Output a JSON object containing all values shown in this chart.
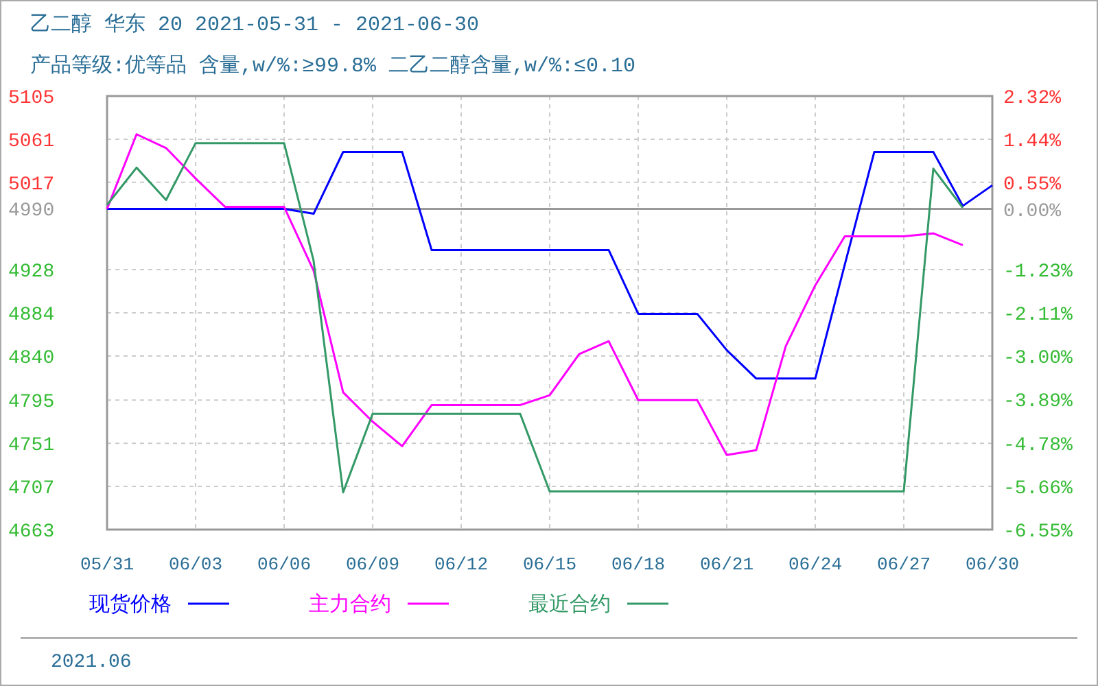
{
  "chart_data": {
    "type": "line",
    "title": "乙二醇 华东 20 2021-05-31 - 2021-06-30",
    "subtitle": "产品等级:优等品 含量,w/%:≥99.8% 二乙二醇含量,w/%:≤0.10",
    "x": [
      "2021-05-31",
      "2021-06-01",
      "2021-06-02",
      "2021-06-03",
      "2021-06-04",
      "2021-06-05",
      "2021-06-06",
      "2021-06-07",
      "2021-06-08",
      "2021-06-09",
      "2021-06-10",
      "2021-06-11",
      "2021-06-12",
      "2021-06-13",
      "2021-06-14",
      "2021-06-15",
      "2021-06-16",
      "2021-06-17",
      "2021-06-18",
      "2021-06-19",
      "2021-06-20",
      "2021-06-21",
      "2021-06-22",
      "2021-06-23",
      "2021-06-24",
      "2021-06-25",
      "2021-06-26",
      "2021-06-27",
      "2021-06-28",
      "2021-06-29",
      "2021-06-30"
    ],
    "series": [
      {
        "name": "现货价格",
        "color": "#0000ff",
        "values": [
          4990,
          4990,
          4990,
          4990,
          4990,
          4990,
          4990,
          4985,
          5048,
          5048,
          5048,
          4948,
          4948,
          4948,
          4948,
          4948,
          4948,
          4948,
          4883,
          4883,
          4883,
          4846,
          4817,
          4817,
          4817,
          4933,
          5048,
          5048,
          5048,
          4993,
          5014
        ]
      },
      {
        "name": "主力合约",
        "color": "#ff00ff",
        "values": [
          4990,
          5066,
          5052,
          5021,
          4992,
          4992,
          4992,
          4927,
          4803,
          4773,
          4748,
          4790,
          4790,
          4790,
          4790,
          4800,
          4842,
          4855,
          4795,
          4795,
          4795,
          4739,
          4744,
          4850,
          4912,
          4962,
          4962,
          4962,
          4965,
          4953,
          null
        ]
      },
      {
        "name": "最近合约",
        "color": "#339966",
        "values": [
          4994,
          5032,
          4999,
          5057,
          5057,
          5057,
          5057,
          4937,
          4701,
          4781,
          4781,
          4781,
          4781,
          4781,
          4781,
          4702,
          4702,
          4702,
          4702,
          4702,
          4702,
          4702,
          4702,
          4702,
          4702,
          4702,
          4702,
          4702,
          5031,
          4991,
          null
        ]
      }
    ],
    "xlim": [
      "2021-05-31",
      "2021-06-30"
    ],
    "xticks": [
      {
        "value": "2021-05-31",
        "label": "05/31"
      },
      {
        "value": "2021-06-03",
        "label": "06/03"
      },
      {
        "value": "2021-06-06",
        "label": "06/06"
      },
      {
        "value": "2021-06-09",
        "label": "06/09"
      },
      {
        "value": "2021-06-12",
        "label": "06/12"
      },
      {
        "value": "2021-06-15",
        "label": "06/15"
      },
      {
        "value": "2021-06-18",
        "label": "06/18"
      },
      {
        "value": "2021-06-21",
        "label": "06/21"
      },
      {
        "value": "2021-06-24",
        "label": "06/24"
      },
      {
        "value": "2021-06-27",
        "label": "06/27"
      },
      {
        "value": "2021-06-30",
        "label": "06/30"
      }
    ],
    "ylim": [
      4663,
      5105
    ],
    "yticks": [
      5105,
      5061,
      5017,
      4990,
      4928,
      4884,
      4840,
      4795,
      4751,
      4707,
      4663
    ],
    "y2lim": [
      -6.55,
      2.32
    ],
    "y2ticks": [
      {
        "value": 2.32,
        "label": "2.32%"
      },
      {
        "value": 1.44,
        "label": "1.44%"
      },
      {
        "value": 0.55,
        "label": "0.55%"
      },
      {
        "value": 0,
        "label": "0.00%"
      },
      {
        "value": -1.23,
        "label": "-1.23%"
      },
      {
        "value": -2.11,
        "label": "-2.11%"
      },
      {
        "value": -3.0,
        "label": "-3.00%"
      },
      {
        "value": -3.89,
        "label": "-3.89%"
      },
      {
        "value": -4.78,
        "label": "-4.78%"
      },
      {
        "value": -5.66,
        "label": "-5.66%"
      },
      {
        "value": -6.55,
        "label": "-6.55%"
      }
    ],
    "ref_lines": [
      {
        "axis": "y",
        "value": 4990,
        "color": "#999999",
        "line_style": "solid"
      }
    ],
    "grid": true,
    "legend": "bottom",
    "marker": "none",
    "line_style": "solid",
    "annotations": [
      "2021.06"
    ]
  }
}
